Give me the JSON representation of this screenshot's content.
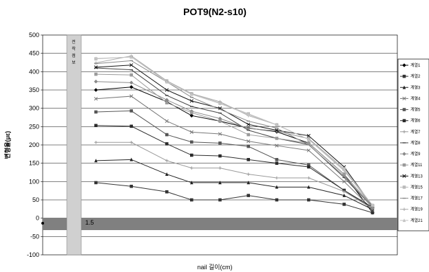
{
  "chart_data": {
    "type": "line",
    "title": "POT9(N2-s10)",
    "xlabel": "nail 길이(cm)",
    "ylabel": "변형율(με)",
    "ylim": [
      -100,
      500
    ],
    "yticks": [
      -100,
      -50,
      0,
      50,
      100,
      150,
      200,
      250,
      300,
      350,
      400,
      450,
      500
    ],
    "x_tick_label": "1.5",
    "xlim": [
      0,
      10
    ],
    "x": [
      1.5,
      2.5,
      3.5,
      4.2,
      5.0,
      5.8,
      6.6,
      7.5,
      8.5,
      9.3
    ],
    "grid": true,
    "legend_position": "right",
    "band_label": "전 착 점 보",
    "series": [
      {
        "name": "계열1",
        "color": "#000000",
        "values": [
          350,
          358,
          318,
          280,
          265,
          246,
          236,
          205,
          120,
          15
        ]
      },
      {
        "name": "계열2",
        "color": "#333333",
        "values": [
          97,
          87,
          72,
          50,
          50,
          62,
          50,
          50,
          38,
          15
        ]
      },
      {
        "name": "계열3",
        "color": "#222222",
        "values": [
          157,
          160,
          120,
          97,
          97,
          97,
          85,
          85,
          62,
          24
        ]
      },
      {
        "name": "계열4",
        "color": "#777777",
        "values": [
          326,
          333,
          265,
          235,
          230,
          210,
          198,
          185,
          100,
          24
        ]
      },
      {
        "name": "계열5",
        "color": "#555555",
        "values": [
          290,
          293,
          228,
          208,
          205,
          196,
          160,
          145,
          76,
          26
        ]
      },
      {
        "name": "계열6",
        "color": "#2a2a2a",
        "values": [
          253,
          251,
          203,
          172,
          170,
          160,
          150,
          140,
          76,
          30
        ]
      },
      {
        "name": "계열7",
        "color": "#999999",
        "values": [
          207,
          207,
          157,
          137,
          137,
          120,
          110,
          110,
          73,
          26
        ]
      },
      {
        "name": "계열8",
        "color": "#444444",
        "values": [
          410,
          405,
          335,
          305,
          287,
          240,
          218,
          201,
          111,
          30
        ]
      },
      {
        "name": "계열9",
        "color": "#8a8a8a",
        "values": [
          373,
          370,
          323,
          292,
          272,
          245,
          238,
          217,
          135,
          30
        ]
      },
      {
        "name": "계열11",
        "color": "#9a9a9a",
        "values": [
          393,
          391,
          315,
          288,
          265,
          228,
          218,
          205,
          120,
          31
        ]
      },
      {
        "name": "계열13",
        "color": "#111111",
        "values": [
          412,
          418,
          350,
          320,
          300,
          256,
          240,
          225,
          140,
          33
        ]
      },
      {
        "name": "계열15",
        "color": "#bbbbbb",
        "values": [
          435,
          440,
          375,
          340,
          315,
          285,
          255,
          215,
          135,
          35
        ]
      },
      {
        "name": "계열17",
        "color": "#888888",
        "values": [
          422,
          430,
          372,
          330,
          297,
          265,
          246,
          200,
          115,
          30
        ]
      },
      {
        "name": "계열19",
        "color": "#aaaaaa",
        "values": [
          424,
          443,
          375,
          340,
          318,
          280,
          255,
          215,
          130,
          35
        ]
      },
      {
        "name": "계열21",
        "color": "#c4c4c4",
        "values": [
          436,
          440,
          372,
          338,
          313,
          283,
          255,
          215,
          133,
          36
        ]
      }
    ]
  }
}
